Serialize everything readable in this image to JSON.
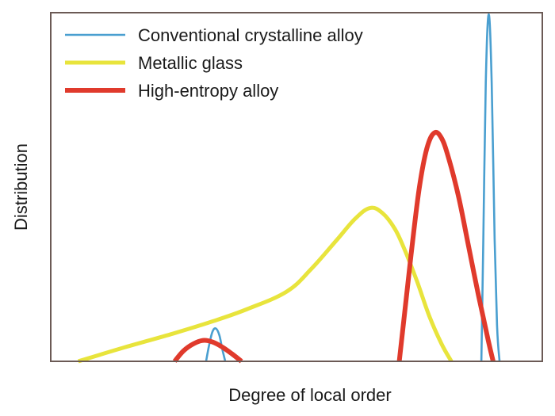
{
  "chart_data": {
    "type": "line",
    "title": "",
    "xlabel": "Degree of local order",
    "ylabel": "Distribution",
    "xlim": [
      0,
      1
    ],
    "ylim": [
      0,
      1
    ],
    "x_ticks": "none",
    "y_ticks": "none",
    "grid": false,
    "legend_placement": "top-left",
    "frame_color": "#6b5a55",
    "series": [
      {
        "name": "Conventional crystalline alloy",
        "color": "#4a9fd0",
        "x": [
          0.316,
          0.322,
          0.329,
          0.336,
          0.343,
          0.349,
          0.355,
          0.876,
          0.88,
          0.885,
          0.891,
          0.897,
          0.903,
          0.908,
          0.913
        ],
        "y": [
          0.0,
          0.045,
          0.085,
          0.094,
          0.075,
          0.035,
          0.0,
          0.0,
          0.35,
          0.8,
          0.995,
          0.8,
          0.35,
          0.1,
          0.0
        ]
      },
      {
        "name": "Metallic glass",
        "color": "#e8e43c",
        "x": [
          0.056,
          0.15,
          0.25,
          0.33,
          0.4,
          0.48,
          0.53,
          0.58,
          0.62,
          0.65,
          0.675,
          0.7,
          0.72,
          0.745,
          0.77,
          0.795,
          0.815
        ],
        "y": [
          0.0,
          0.04,
          0.08,
          0.115,
          0.15,
          0.2,
          0.265,
          0.345,
          0.41,
          0.44,
          0.425,
          0.38,
          0.32,
          0.23,
          0.13,
          0.05,
          0.0
        ]
      },
      {
        "name": "High-entropy alloy",
        "color": "#e03a2c",
        "x": [
          0.252,
          0.27,
          0.29,
          0.31,
          0.33,
          0.35,
          0.37,
          0.388,
          0.709,
          0.72,
          0.735,
          0.75,
          0.765,
          0.78,
          0.795,
          0.81,
          0.83,
          0.85,
          0.87,
          0.89,
          0.9
        ],
        "y": [
          0.0,
          0.03,
          0.05,
          0.06,
          0.055,
          0.04,
          0.02,
          0.0,
          0.0,
          0.14,
          0.33,
          0.5,
          0.61,
          0.655,
          0.64,
          0.58,
          0.47,
          0.33,
          0.19,
          0.06,
          0.0
        ]
      }
    ]
  }
}
